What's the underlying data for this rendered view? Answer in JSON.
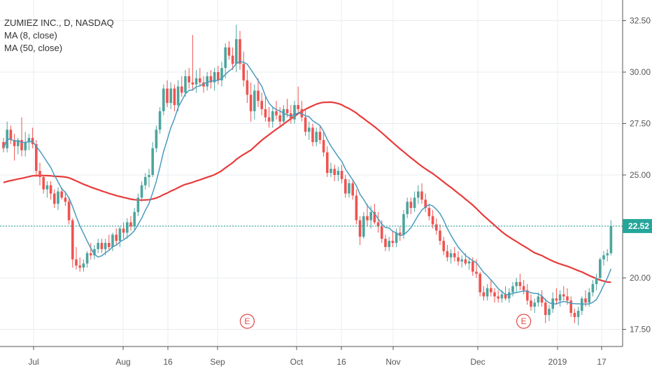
{
  "chart_data": {
    "type": "candlestick",
    "title": "ZUMIEZ INC., D, NASDAQ",
    "indicators": [
      {
        "name": "MA (8, close)",
        "color": "#4a9bbf"
      },
      {
        "name": "MA (50, close)",
        "color": "#e83b3b"
      }
    ],
    "y_ticks": [
      "17.50",
      "20.00",
      "22.50",
      "25.00",
      "27.50",
      "30.00",
      "32.50"
    ],
    "ylim": [
      17.0,
      33.0
    ],
    "x_ticks": [
      "Jul",
      "Aug",
      "16",
      "Sep",
      "Oct",
      "16",
      "Nov",
      "Dec",
      "2019",
      "17"
    ],
    "last_price": "22.52",
    "last_price_value": 22.52,
    "earnings_marker": "E",
    "earnings_dates_index": [
      67,
      143
    ],
    "grid": true,
    "colors": {
      "up": "#4ca59d",
      "down": "#ef5350",
      "ma8": "#4a9bbf",
      "ma50": "#e83b3b",
      "price_line": "#26a69a"
    },
    "candles": [
      [
        26.6,
        26.8,
        26.1,
        26.3
      ],
      [
        26.3,
        27.6,
        26.1,
        27.2
      ],
      [
        27.2,
        27.4,
        26.5,
        26.7
      ],
      [
        26.7,
        27.0,
        25.7,
        26.4
      ],
      [
        26.4,
        26.8,
        26.0,
        26.7
      ],
      [
        26.7,
        27.8,
        25.9,
        26.2
      ],
      [
        26.2,
        27.1,
        25.9,
        26.6
      ],
      [
        26.6,
        27.0,
        26.2,
        26.8
      ],
      [
        26.8,
        27.3,
        26.3,
        26.5
      ],
      [
        26.5,
        26.7,
        24.9,
        25.2
      ],
      [
        25.2,
        25.6,
        24.5,
        24.9
      ],
      [
        24.9,
        25.0,
        24.1,
        24.3
      ],
      [
        24.3,
        24.7,
        23.9,
        24.5
      ],
      [
        24.5,
        24.7,
        23.8,
        24.1
      ],
      [
        24.1,
        24.3,
        23.4,
        23.6
      ],
      [
        23.6,
        24.4,
        23.3,
        24.2
      ],
      [
        24.2,
        24.4,
        23.8,
        23.9
      ],
      [
        23.9,
        24.2,
        23.5,
        23.7
      ],
      [
        23.7,
        23.9,
        22.6,
        22.8
      ],
      [
        22.8,
        22.9,
        20.5,
        20.9
      ],
      [
        20.9,
        21.5,
        20.4,
        20.6
      ],
      [
        20.6,
        21.0,
        20.3,
        20.5
      ],
      [
        20.5,
        20.9,
        20.3,
        20.7
      ],
      [
        20.7,
        21.3,
        20.5,
        21.2
      ],
      [
        21.2,
        21.7,
        20.9,
        21.1
      ],
      [
        21.1,
        21.6,
        20.9,
        21.4
      ],
      [
        21.4,
        21.9,
        21.2,
        21.7
      ],
      [
        21.7,
        21.9,
        21.2,
        21.4
      ],
      [
        21.4,
        21.9,
        21.1,
        21.7
      ],
      [
        21.7,
        22.1,
        21.3,
        21.5
      ],
      [
        21.5,
        22.2,
        21.3,
        22.1
      ],
      [
        22.1,
        22.4,
        21.6,
        21.8
      ],
      [
        21.8,
        22.5,
        21.5,
        22.4
      ],
      [
        22.4,
        22.7,
        21.9,
        22.2
      ],
      [
        22.2,
        22.9,
        21.9,
        22.7
      ],
      [
        22.7,
        23.0,
        22.3,
        22.5
      ],
      [
        22.5,
        23.4,
        22.3,
        23.2
      ],
      [
        23.2,
        24.1,
        23.0,
        23.9
      ],
      [
        23.9,
        24.7,
        23.7,
        24.5
      ],
      [
        24.5,
        25.1,
        24.3,
        24.9
      ],
      [
        24.9,
        25.3,
        24.4,
        25.0
      ],
      [
        25.0,
        26.6,
        24.9,
        26.3
      ],
      [
        26.3,
        27.4,
        26.1,
        27.2
      ],
      [
        27.2,
        28.3,
        27.0,
        28.1
      ],
      [
        28.1,
        29.4,
        27.9,
        29.2
      ],
      [
        29.2,
        29.6,
        28.3,
        28.5
      ],
      [
        28.5,
        29.5,
        28.2,
        29.2
      ],
      [
        29.2,
        29.4,
        28.1,
        28.4
      ],
      [
        28.4,
        29.6,
        28.1,
        29.3
      ],
      [
        29.3,
        29.8,
        28.8,
        29.0
      ],
      [
        29.0,
        30.1,
        28.8,
        29.8
      ],
      [
        29.8,
        30.2,
        29.2,
        29.5
      ],
      [
        29.5,
        31.8,
        29.1,
        29.4
      ],
      [
        29.4,
        30.1,
        29.0,
        29.7
      ],
      [
        29.7,
        30.2,
        29.3,
        29.5
      ],
      [
        29.5,
        29.8,
        29.0,
        29.3
      ],
      [
        29.3,
        30.0,
        29.1,
        29.8
      ],
      [
        29.8,
        30.1,
        29.2,
        29.5
      ],
      [
        29.5,
        30.2,
        29.1,
        30.0
      ],
      [
        30.0,
        30.3,
        29.4,
        29.6
      ],
      [
        29.6,
        30.5,
        29.3,
        30.2
      ],
      [
        30.2,
        31.4,
        29.7,
        31.2
      ],
      [
        31.2,
        31.5,
        30.6,
        30.8
      ],
      [
        30.8,
        31.2,
        30.1,
        30.4
      ],
      [
        30.4,
        32.3,
        30.0,
        31.6
      ],
      [
        31.6,
        32.0,
        30.1,
        30.4
      ],
      [
        30.4,
        31.0,
        29.3,
        29.6
      ],
      [
        29.6,
        30.1,
        28.5,
        28.9
      ],
      [
        28.9,
        29.5,
        27.6,
        28.1
      ],
      [
        28.1,
        29.4,
        27.7,
        29.1
      ],
      [
        29.1,
        29.7,
        28.3,
        28.6
      ],
      [
        28.6,
        29.0,
        27.9,
        28.2
      ],
      [
        28.2,
        28.8,
        27.6,
        27.8
      ],
      [
        27.8,
        28.3,
        27.3,
        27.6
      ],
      [
        27.6,
        28.3,
        27.3,
        28.1
      ],
      [
        28.1,
        28.6,
        27.7,
        27.9
      ],
      [
        27.9,
        28.3,
        27.4,
        27.6
      ],
      [
        27.6,
        28.4,
        27.4,
        28.2
      ],
      [
        28.2,
        28.7,
        27.8,
        28.0
      ],
      [
        28.0,
        28.4,
        27.5,
        27.7
      ],
      [
        27.7,
        28.6,
        27.5,
        28.4
      ],
      [
        28.4,
        29.3,
        28.0,
        28.2
      ],
      [
        28.2,
        28.6,
        27.6,
        27.8
      ],
      [
        27.8,
        28.2,
        26.9,
        27.1
      ],
      [
        27.1,
        27.6,
        26.7,
        27.3
      ],
      [
        27.3,
        27.5,
        26.4,
        26.6
      ],
      [
        26.6,
        27.3,
        26.4,
        27.1
      ],
      [
        27.1,
        27.4,
        26.5,
        26.7
      ],
      [
        26.7,
        27.1,
        25.9,
        26.1
      ],
      [
        26.1,
        26.4,
        24.9,
        25.1
      ],
      [
        25.1,
        25.6,
        24.9,
        25.3
      ],
      [
        25.3,
        25.5,
        24.7,
        25.0
      ],
      [
        25.0,
        25.4,
        24.7,
        25.2
      ],
      [
        25.2,
        25.5,
        24.6,
        24.8
      ],
      [
        24.8,
        25.0,
        23.9,
        24.1
      ],
      [
        24.1,
        24.8,
        23.9,
        24.6
      ],
      [
        24.6,
        24.8,
        23.8,
        24.0
      ],
      [
        24.0,
        24.3,
        22.6,
        22.8
      ],
      [
        22.8,
        23.0,
        21.6,
        22.0
      ],
      [
        22.0,
        23.2,
        21.9,
        23.0
      ],
      [
        23.0,
        23.6,
        22.5,
        22.8
      ],
      [
        22.8,
        23.5,
        22.4,
        23.2
      ],
      [
        23.2,
        23.6,
        22.6,
        22.7
      ],
      [
        22.7,
        23.2,
        22.2,
        22.5
      ],
      [
        22.5,
        22.8,
        21.7,
        21.9
      ],
      [
        21.9,
        22.1,
        21.3,
        21.5
      ],
      [
        21.5,
        22.0,
        21.3,
        21.8
      ],
      [
        21.8,
        22.3,
        21.5,
        21.7
      ],
      [
        21.7,
        22.4,
        21.5,
        22.2
      ],
      [
        22.2,
        22.5,
        21.8,
        22.1
      ],
      [
        22.1,
        23.3,
        21.9,
        23.1
      ],
      [
        23.1,
        23.9,
        22.9,
        23.7
      ],
      [
        23.7,
        23.9,
        23.1,
        23.4
      ],
      [
        23.4,
        24.2,
        23.2,
        23.9
      ],
      [
        23.9,
        24.5,
        23.6,
        24.2
      ],
      [
        24.2,
        24.6,
        23.6,
        23.8
      ],
      [
        23.8,
        24.1,
        23.2,
        23.4
      ],
      [
        23.4,
        23.6,
        22.8,
        23.0
      ],
      [
        23.0,
        23.3,
        22.4,
        22.6
      ],
      [
        22.6,
        22.9,
        22.1,
        22.3
      ],
      [
        22.3,
        22.6,
        21.6,
        21.8
      ],
      [
        21.8,
        22.0,
        21.1,
        21.3
      ],
      [
        21.3,
        21.6,
        20.8,
        21.0
      ],
      [
        21.0,
        21.4,
        20.7,
        21.2
      ],
      [
        21.2,
        21.5,
        20.8,
        21.0
      ],
      [
        21.0,
        21.3,
        20.6,
        20.8
      ],
      [
        20.8,
        21.1,
        20.5,
        20.9
      ],
      [
        20.9,
        21.2,
        20.6,
        20.7
      ],
      [
        20.7,
        21.0,
        20.4,
        20.8
      ],
      [
        20.8,
        21.0,
        20.1,
        20.3
      ],
      [
        20.3,
        20.9,
        20.0,
        20.2
      ],
      [
        20.2,
        20.3,
        19.1,
        19.3
      ],
      [
        19.3,
        19.6,
        18.9,
        19.1
      ],
      [
        19.1,
        19.7,
        18.9,
        19.5
      ],
      [
        19.5,
        19.9,
        19.1,
        19.3
      ],
      [
        19.3,
        19.5,
        18.8,
        19.1
      ],
      [
        19.1,
        19.4,
        18.8,
        19.0
      ],
      [
        19.0,
        19.4,
        18.8,
        19.2
      ],
      [
        19.2,
        19.6,
        18.9,
        19.0
      ],
      [
        19.0,
        19.5,
        18.8,
        19.3
      ],
      [
        19.3,
        19.8,
        19.1,
        19.6
      ],
      [
        19.6,
        20.0,
        19.3,
        19.8
      ],
      [
        19.8,
        20.2,
        19.4,
        19.6
      ],
      [
        19.6,
        19.9,
        19.2,
        19.4
      ],
      [
        19.4,
        19.7,
        18.7,
        18.9
      ],
      [
        18.9,
        19.2,
        18.4,
        18.6
      ],
      [
        18.6,
        19.0,
        18.3,
        18.8
      ],
      [
        18.8,
        19.3,
        18.6,
        19.1
      ],
      [
        19.1,
        19.4,
        18.6,
        18.8
      ],
      [
        18.8,
        19.0,
        17.8,
        18.2
      ],
      [
        18.2,
        18.7,
        17.9,
        18.5
      ],
      [
        18.5,
        19.3,
        18.3,
        19.0
      ],
      [
        19.0,
        19.5,
        18.7,
        18.9
      ],
      [
        18.9,
        19.4,
        18.6,
        19.2
      ],
      [
        19.2,
        19.6,
        18.9,
        19.1
      ],
      [
        19.1,
        19.5,
        18.7,
        18.9
      ],
      [
        18.9,
        19.1,
        18.1,
        18.3
      ],
      [
        18.3,
        18.5,
        17.8,
        18.1
      ],
      [
        18.1,
        18.6,
        17.7,
        18.4
      ],
      [
        18.4,
        19.1,
        18.2,
        19.0
      ],
      [
        19.0,
        19.4,
        18.6,
        18.8
      ],
      [
        18.8,
        19.5,
        18.6,
        19.3
      ],
      [
        19.3,
        19.9,
        19.1,
        19.7
      ],
      [
        19.7,
        20.2,
        19.4,
        20.0
      ],
      [
        20.0,
        21.0,
        19.9,
        20.9
      ],
      [
        20.9,
        21.3,
        20.6,
        21.1
      ],
      [
        21.1,
        21.4,
        20.8,
        21.2
      ],
      [
        21.2,
        22.8,
        21.1,
        22.52
      ]
    ]
  }
}
